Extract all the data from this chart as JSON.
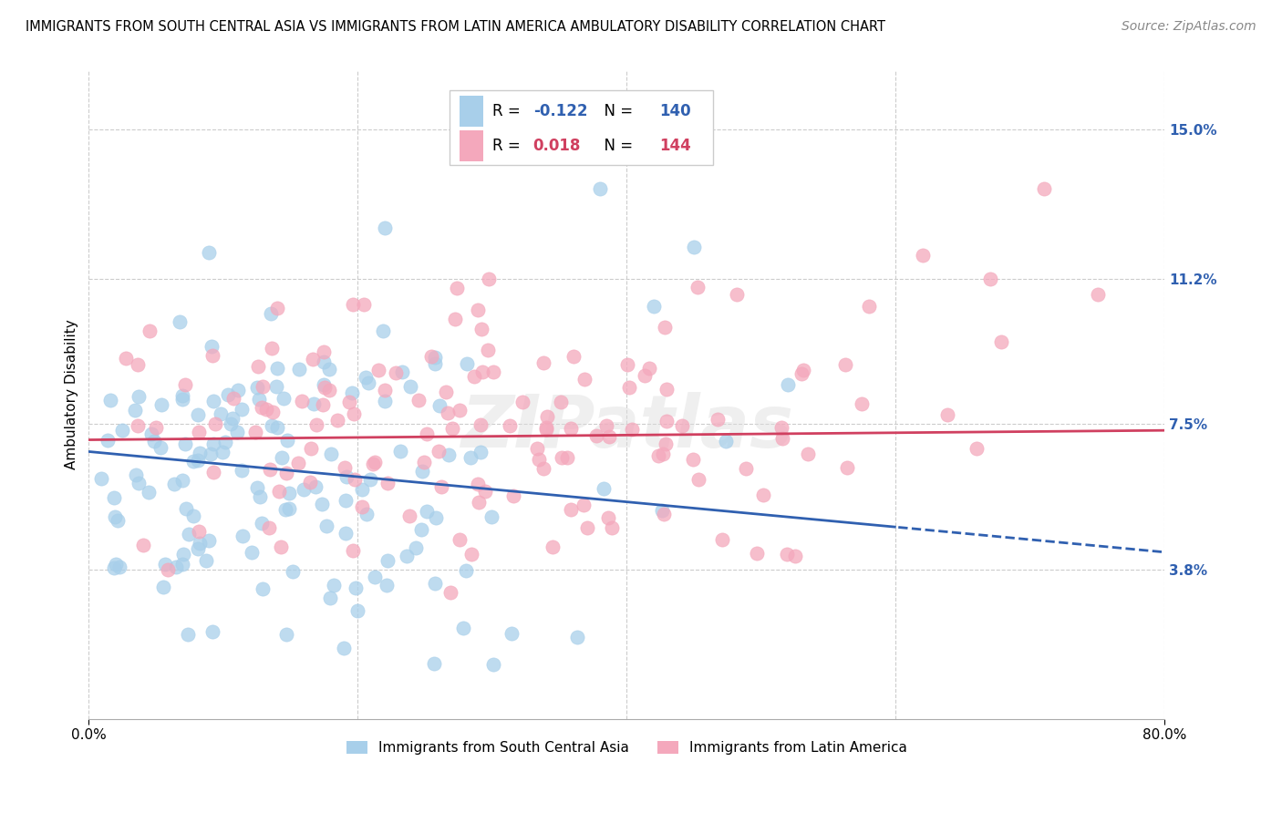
{
  "title": "IMMIGRANTS FROM SOUTH CENTRAL ASIA VS IMMIGRANTS FROM LATIN AMERICA AMBULATORY DISABILITY CORRELATION CHART",
  "source": "Source: ZipAtlas.com",
  "ylabel": "Ambulatory Disability",
  "xlim": [
    0.0,
    0.8
  ],
  "ylim": [
    0.0,
    0.165
  ],
  "yticks": [
    0.038,
    0.075,
    0.112,
    0.15
  ],
  "ytick_labels": [
    "3.8%",
    "7.5%",
    "11.2%",
    "15.0%"
  ],
  "xtick_labels": [
    "0.0%",
    "80.0%"
  ],
  "color_asia": "#A8CFEA",
  "color_latin": "#F4A8BC",
  "line_color_asia": "#3060B0",
  "line_color_latin": "#D04060",
  "R_asia": -0.122,
  "N_asia": 140,
  "R_latin": 0.018,
  "N_latin": 144,
  "legend_label_asia": "Immigrants from South Central Asia",
  "legend_label_latin": "Immigrants from Latin America",
  "background_color": "#FFFFFF",
  "grid_color": "#CCCCCC",
  "watermark_color": "#DDDDDD",
  "title_fontsize": 10.5,
  "source_fontsize": 10,
  "tick_fontsize": 11,
  "ylabel_fontsize": 11,
  "legend_fontsize": 11
}
